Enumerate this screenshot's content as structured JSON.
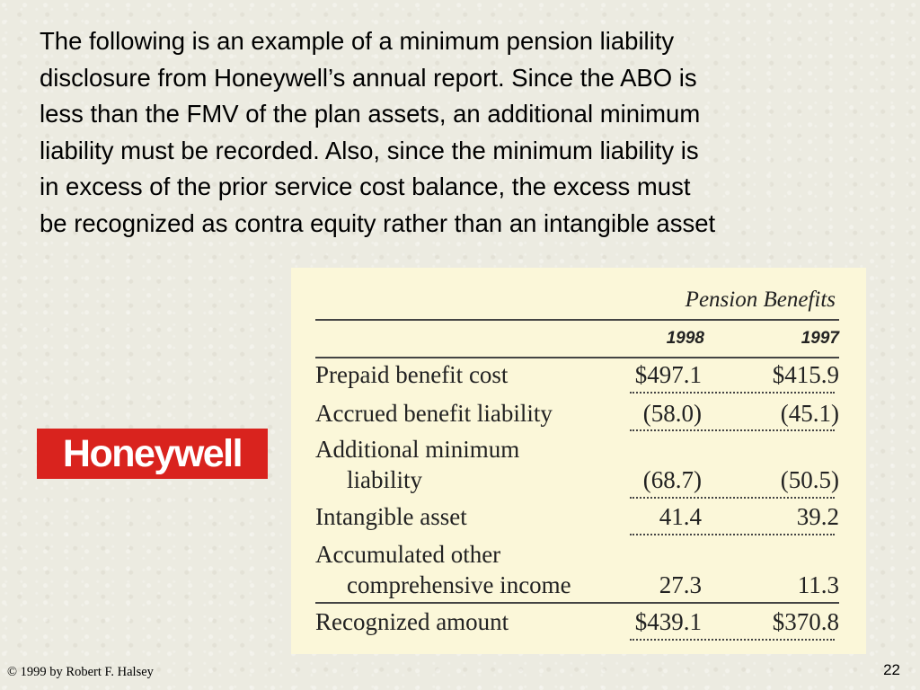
{
  "slide": {
    "text_lines": [
      "The following is an example of a minimum pension liability",
      "disclosure from Honeywell’s annual report. Since the ABO is",
      "less than the FMV of the plan assets, an additional minimum",
      "liability must be recorded. Also, since the minimum liability is",
      "in excess of the prior service cost  balance, the excess must",
      "be recognized as contra equity rather than an intangible asset"
    ]
  },
  "logo": {
    "text": "Honeywell",
    "color": "#d9231e"
  },
  "table": {
    "heading": "Pension Benefits",
    "years": [
      "1998",
      "1997"
    ],
    "rows": [
      {
        "label": "Prepaid benefit cost",
        "v1998": "$497.1",
        "v1997": "$415.9"
      },
      {
        "label": "Accrued benefit liability",
        "v1998": "(58.0)",
        "v1997": "(45.1)"
      },
      {
        "label": "Additional minimum",
        "label2": "liability",
        "v1998": "(68.7)",
        "v1997": "(50.5)"
      },
      {
        "label": "Intangible asset",
        "v1998": "41.4",
        "v1997": "39.2"
      },
      {
        "label": "Accumulated other",
        "label2": "comprehensive income",
        "v1998": "27.3",
        "v1997": "11.3"
      },
      {
        "label": "Recognized amount",
        "v1998": "$439.1",
        "v1997": "$370.8"
      }
    ]
  },
  "footer": {
    "copyright": "© 1999 by Robert F. Halsey",
    "page_number": "22"
  }
}
